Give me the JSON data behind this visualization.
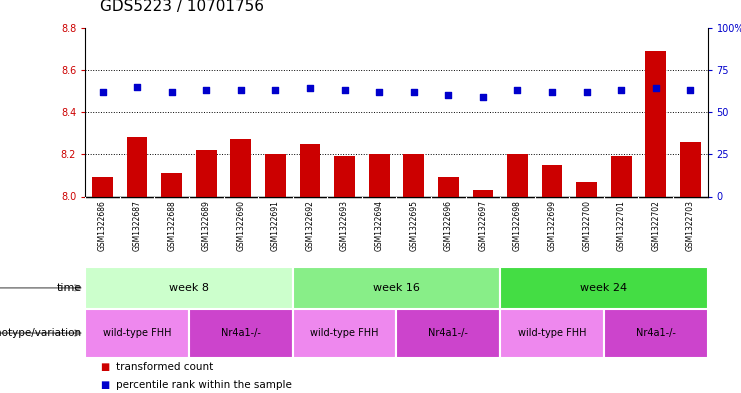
{
  "title": "GDS5223 / 10701756",
  "samples": [
    "GSM1322686",
    "GSM1322687",
    "GSM1322688",
    "GSM1322689",
    "GSM1322690",
    "GSM1322691",
    "GSM1322692",
    "GSM1322693",
    "GSM1322694",
    "GSM1322695",
    "GSM1322696",
    "GSM1322697",
    "GSM1322698",
    "GSM1322699",
    "GSM1322700",
    "GSM1322701",
    "GSM1322702",
    "GSM1322703"
  ],
  "transformed_count": [
    8.09,
    8.28,
    8.11,
    8.22,
    8.27,
    8.2,
    8.25,
    8.19,
    8.2,
    8.2,
    8.09,
    8.03,
    8.2,
    8.15,
    8.07,
    8.19,
    8.69,
    8.26
  ],
  "percentile_rank": [
    62,
    65,
    62,
    63,
    63,
    63,
    64,
    63,
    62,
    62,
    60,
    59,
    63,
    62,
    62,
    63,
    64,
    63
  ],
  "bar_color": "#cc0000",
  "dot_color": "#0000cc",
  "ylim_left": [
    8.0,
    8.8
  ],
  "ylim_right": [
    0,
    100
  ],
  "yticks_left": [
    8.0,
    8.2,
    8.4,
    8.6,
    8.8
  ],
  "yticks_right": [
    0,
    25,
    50,
    75,
    100
  ],
  "ytick_labels_right": [
    "0",
    "25",
    "50",
    "75",
    "100%"
  ],
  "grid_values": [
    8.2,
    8.4,
    8.6
  ],
  "time_groups": [
    {
      "label": "week 8",
      "start": 0,
      "end": 5,
      "color": "#ccffcc"
    },
    {
      "label": "week 16",
      "start": 6,
      "end": 11,
      "color": "#88ee88"
    },
    {
      "label": "week 24",
      "start": 12,
      "end": 17,
      "color": "#44dd44"
    }
  ],
  "genotype_groups": [
    {
      "label": "wild-type FHH",
      "start": 0,
      "end": 2,
      "color": "#ee88ee"
    },
    {
      "label": "Nr4a1-/-",
      "start": 3,
      "end": 5,
      "color": "#cc44cc"
    },
    {
      "label": "wild-type FHH",
      "start": 6,
      "end": 8,
      "color": "#ee88ee"
    },
    {
      "label": "Nr4a1-/-",
      "start": 9,
      "end": 11,
      "color": "#cc44cc"
    },
    {
      "label": "wild-type FHH",
      "start": 12,
      "end": 14,
      "color": "#ee88ee"
    },
    {
      "label": "Nr4a1-/-",
      "start": 15,
      "end": 17,
      "color": "#cc44cc"
    }
  ],
  "legend_items": [
    {
      "label": "transformed count",
      "color": "#cc0000"
    },
    {
      "label": "percentile rank within the sample",
      "color": "#0000cc"
    }
  ],
  "time_label": "time",
  "genotype_label": "genotype/variation",
  "bg_color": "#ffffff",
  "xtick_bg_color": "#d0d0d0",
  "tick_color_left": "#cc0000",
  "tick_color_right": "#0000cc",
  "title_fontsize": 11,
  "tick_fontsize": 7,
  "bar_width": 0.6,
  "dot_size": 18
}
